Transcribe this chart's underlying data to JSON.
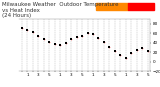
{
  "title": "Milwaukee Weather  Outdoor Temperature\nvs Heat Index\n(24 Hours)",
  "bg_color": "#ffffff",
  "plot_bg": "#ffffff",
  "grid_color": "#999999",
  "temp_color": "#ff0000",
  "heat_color": "#000000",
  "legend_color1": "#ff8800",
  "legend_color2": "#ff0000",
  "ylim": [
    -20,
    90
  ],
  "yticks": [
    80,
    60,
    40,
    20,
    0,
    -20
  ],
  "xlim": [
    0,
    23
  ],
  "hours": [
    0,
    1,
    2,
    3,
    4,
    5,
    6,
    7,
    8,
    9,
    10,
    11,
    12,
    13,
    14,
    15,
    16,
    17,
    18,
    19,
    20,
    21,
    22,
    23
  ],
  "xtick_labels": [
    "1",
    "3",
    "5",
    "1",
    "3",
    "5",
    "1",
    "3",
    "5",
    "1",
    "3",
    "5",
    "1",
    "3",
    "5",
    "1",
    "3",
    "5",
    "1",
    "3",
    "5",
    "1",
    "3",
    "5"
  ],
  "temps": [
    72,
    68,
    62,
    55,
    48,
    42,
    38,
    36,
    40,
    48,
    53,
    55,
    60,
    58,
    50,
    42,
    32,
    22,
    14,
    8,
    18,
    25,
    30,
    22
  ],
  "heat_index": [
    72,
    68,
    62,
    55,
    48,
    42,
    38,
    36,
    40,
    48,
    53,
    55,
    60,
    58,
    50,
    42,
    32,
    22,
    14,
    8,
    18,
    25,
    30,
    22
  ],
  "title_fontsize": 4.0,
  "tick_fontsize": 3.0,
  "marker_size": 1.2,
  "heat_marker_size": 1.2
}
